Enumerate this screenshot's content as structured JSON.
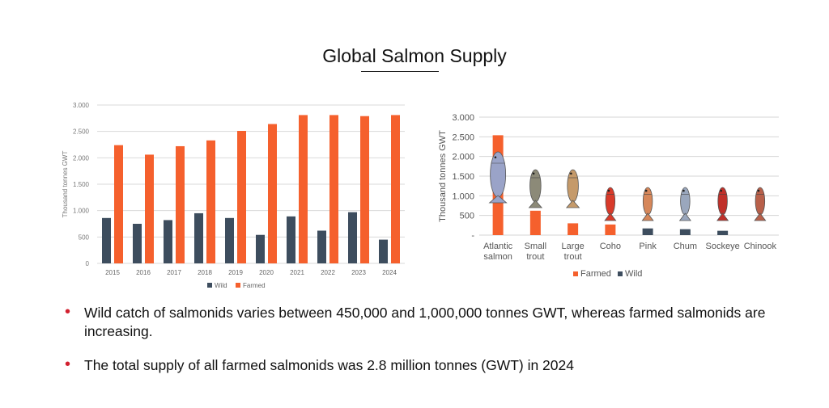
{
  "slide": {
    "title": "Global Salmon Supply",
    "bullets": [
      "Wild catch of salmonids varies between 450,000 and 1,000,000 tonnes GWT, whereas farmed salmonids are increasing.",
      "The total supply of all farmed salmonids was 2.8 million tonnes (GWT) in 2024"
    ]
  },
  "colors": {
    "wild": "#3d4d5e",
    "farmed": "#f5602d",
    "bullet": "#d2202f"
  },
  "chart_data": [
    {
      "type": "bar",
      "title": "",
      "ylabel": "Thousand tonnes GWT",
      "xlabel": "",
      "categories": [
        "2015",
        "2016",
        "2017",
        "2018",
        "2019",
        "2020",
        "2021",
        "2022",
        "2023",
        "2024"
      ],
      "series": [
        {
          "name": "Wild",
          "values": [
            860,
            750,
            820,
            950,
            860,
            540,
            890,
            620,
            970,
            450
          ]
        },
        {
          "name": "Farmed",
          "values": [
            2240,
            2060,
            2220,
            2330,
            2510,
            2640,
            2810,
            2810,
            2790,
            2810
          ]
        }
      ],
      "ylim": [
        0,
        3000
      ],
      "yticks": [
        0,
        500,
        1000,
        1500,
        2000,
        2500,
        3000
      ],
      "ytick_labels": [
        "0",
        "500",
        "1.000",
        "1.500",
        "2.000",
        "2.500",
        "3.000"
      ],
      "grid": true,
      "legend": "bottom"
    },
    {
      "type": "bar",
      "title": "",
      "ylabel": "Thousand tonnes GWT",
      "xlabel": "",
      "categories": [
        "Atlantic salmon",
        "Small trout",
        "Large trout",
        "Coho",
        "Pink",
        "Chum",
        "Sockeye",
        "Chinook"
      ],
      "category_lines": [
        [
          "Atlantic",
          "salmon"
        ],
        [
          "Small",
          "trout"
        ],
        [
          "Large",
          "trout"
        ],
        [
          "Coho"
        ],
        [
          "Pink"
        ],
        [
          "Chum"
        ],
        [
          "Sockeye"
        ],
        [
          "Chinook"
        ]
      ],
      "series": [
        {
          "name": "Farmed",
          "values": [
            2540,
            620,
            300,
            270,
            0,
            0,
            0,
            0
          ]
        },
        {
          "name": "Wild",
          "values": [
            0,
            0,
            0,
            0,
            170,
            150,
            110,
            0
          ]
        }
      ],
      "ylim": [
        0,
        3000
      ],
      "yticks": [
        0,
        500,
        1000,
        1500,
        2000,
        2500,
        3000
      ],
      "ytick_labels": [
        "-",
        "500",
        "1.000",
        "1.500",
        "2.000",
        "2.500",
        "3.000"
      ],
      "grid": true,
      "legend": "bottom",
      "fish_icons": [
        {
          "name": "atlantic-salmon-icon",
          "color": "#9aa3c8"
        },
        {
          "name": "small-trout-icon",
          "color": "#8c8a78"
        },
        {
          "name": "large-trout-icon",
          "color": "#c59a6a"
        },
        {
          "name": "coho-icon",
          "color": "#d83a2a"
        },
        {
          "name": "pink-icon",
          "color": "#d6875a"
        },
        {
          "name": "chum-icon",
          "color": "#9aa7bd"
        },
        {
          "name": "sockeye-icon",
          "color": "#c0302a"
        },
        {
          "name": "chinook-icon",
          "color": "#b8604a"
        }
      ]
    }
  ]
}
